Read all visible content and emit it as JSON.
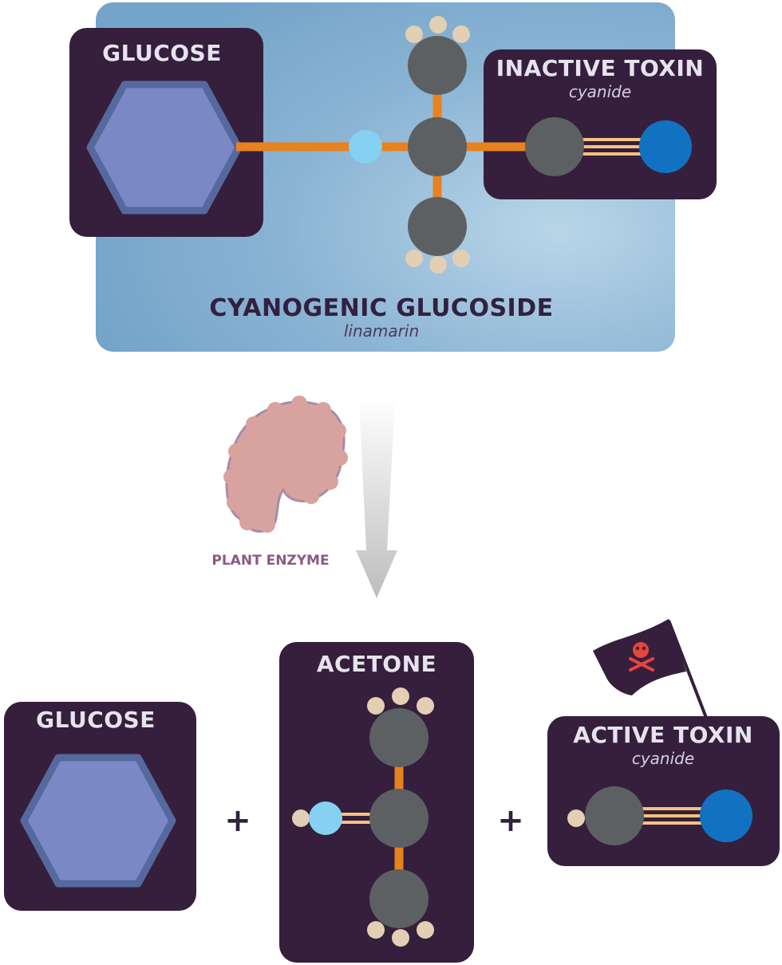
{
  "colors": {
    "panel": "#351f3c",
    "bond": "#e8821e",
    "bond_light": "#f7c27e",
    "carbon": "#5d6062",
    "hydrogen": "#e3cfb3",
    "oxygen": "#86d1f2",
    "nitrogen": "#1272c2",
    "hexagon_fill": "#7a89c6",
    "hexagon_stroke": "#56699f",
    "enzyme": "#d8a39f",
    "enzyme_stroke": "#a78ca8",
    "skull": "#e8453c",
    "arrow": "#c4c4c4"
  },
  "reactant": {
    "name": "CYANOGENIC GLUCOSIDE",
    "example": "linamarin",
    "glucose_label": "GLUCOSE",
    "toxin_label": "INACTIVE TOXIN",
    "toxin_example": "cyanide"
  },
  "enzyme": {
    "label": "PLANT ENZYME"
  },
  "products": {
    "glucose_label": "GLUCOSE",
    "acetone_label": "ACETONE",
    "toxin_label": "ACTIVE TOXIN",
    "toxin_example": "cyanide",
    "plus_symbol": "+",
    "flag_icon": "skull-crossbones-icon"
  }
}
